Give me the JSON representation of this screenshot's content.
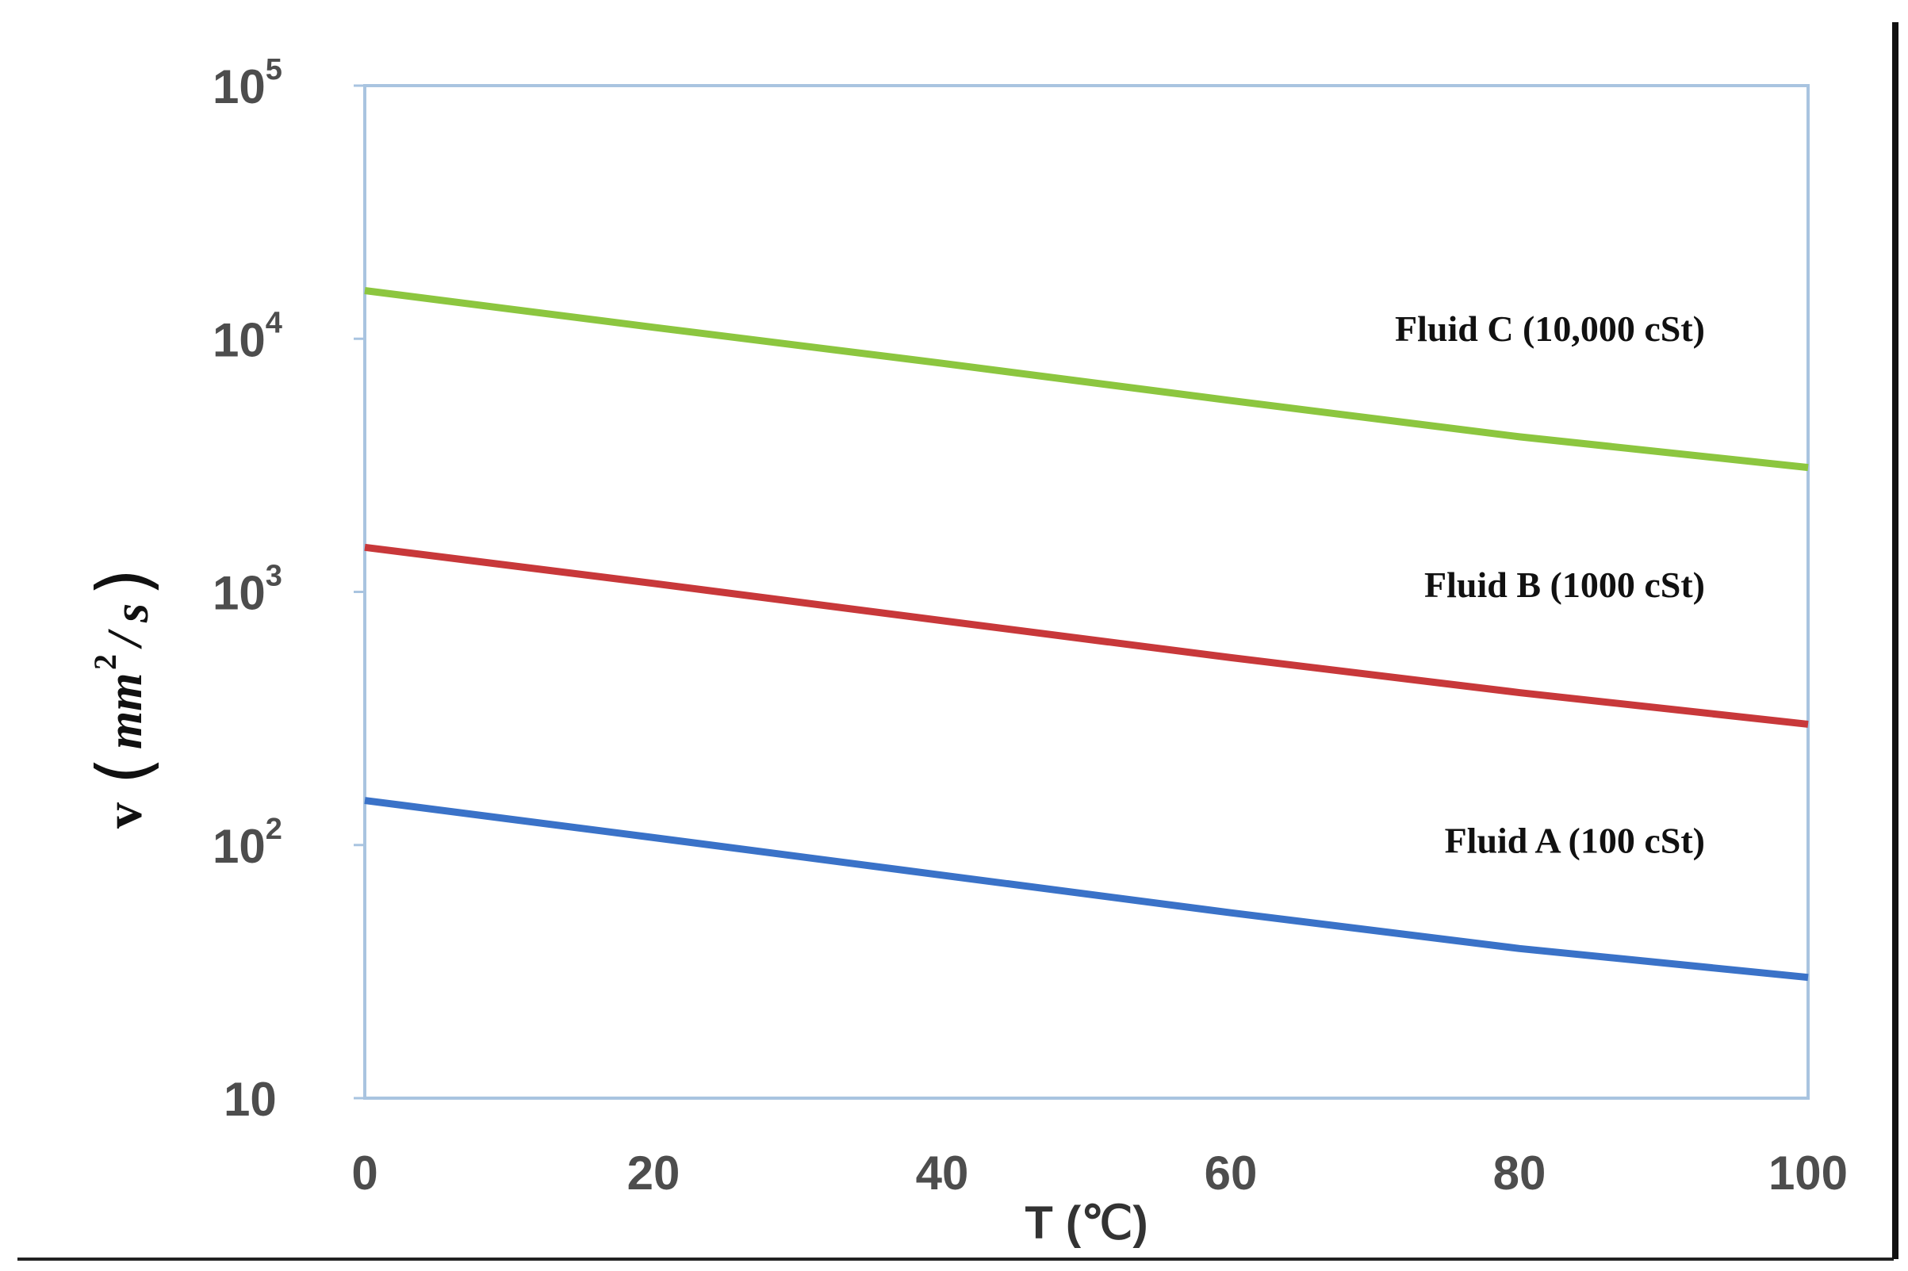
{
  "chart_data": {
    "type": "line",
    "title": "",
    "xlabel": "T (℃)",
    "ylabel": {
      "symbol": "v",
      "unit_base": "mm",
      "unit_exp": "2",
      "unit_den": "s"
    },
    "xlim": [
      0,
      100
    ],
    "ylim": [
      10,
      100000
    ],
    "yscale": "log",
    "grid": false,
    "x_ticks": [
      "0",
      "20",
      "40",
      "60",
      "80",
      "100"
    ],
    "y_ticks": [
      {
        "base": "10",
        "exp": "5"
      },
      {
        "base": "10",
        "exp": "4"
      },
      {
        "base": "10",
        "exp": "3"
      },
      {
        "base": "10",
        "exp": "2"
      },
      {
        "base": "10",
        "exp": ""
      }
    ],
    "x": [
      0,
      20,
      40,
      60,
      80,
      100
    ],
    "series": [
      {
        "name": "Fluid A (100 cSt)",
        "color": "#3a72c8",
        "values": [
          150,
          107,
          76,
          54,
          39,
          30
        ]
      },
      {
        "name": "Fluid B (1000 cSt)",
        "color": "#c8383a",
        "values": [
          1500,
          1080,
          770,
          550,
          400,
          300
        ]
      },
      {
        "name": "Fluid C (10,000 cSt)",
        "color": "#8cc63f",
        "values": [
          15500,
          11100,
          8000,
          5700,
          4100,
          3100
        ]
      }
    ],
    "frame_color": "#a9c4e0"
  }
}
